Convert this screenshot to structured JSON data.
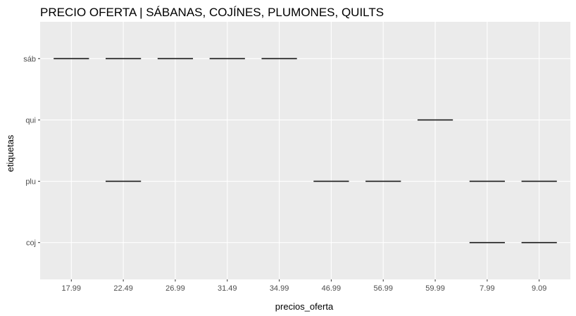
{
  "chart_data": {
    "type": "crossbar",
    "title": "PRECIO OFERTA | SÁBANAS, COJÍNES, PLUMONES, QUILTS",
    "xlabel": "precios_oferta",
    "ylabel": "etiquetas",
    "x_categories": [
      "17.99",
      "22.49",
      "26.99",
      "31.49",
      "34.99",
      "46.99",
      "56.99",
      "59.99",
      "7.99",
      "9.09"
    ],
    "y_categories": [
      "coj",
      "plu",
      "qui",
      "sáb"
    ],
    "segments": [
      {
        "y": "sáb",
        "x_start": "17.99",
        "x_end": "17.99"
      },
      {
        "y": "sáb",
        "x_start": "22.49",
        "x_end": "22.49"
      },
      {
        "y": "sáb",
        "x_start": "26.99",
        "x_end": "26.99"
      },
      {
        "y": "sáb",
        "x_start": "31.49",
        "x_end": "31.49"
      },
      {
        "y": "sáb",
        "x_start": "34.99",
        "x_end": "34.99"
      },
      {
        "y": "qui",
        "x_start": "59.99",
        "x_end": "59.99"
      },
      {
        "y": "plu",
        "x_start": "22.49",
        "x_end": "22.49"
      },
      {
        "y": "plu",
        "x_start": "46.99",
        "x_end": "46.99"
      },
      {
        "y": "plu",
        "x_start": "56.99",
        "x_end": "56.99"
      },
      {
        "y": "plu",
        "x_start": "7.99",
        "x_end": "7.99"
      },
      {
        "y": "plu",
        "x_start": "9.09",
        "x_end": "9.09"
      },
      {
        "y": "coj",
        "x_start": "7.99",
        "x_end": "7.99"
      },
      {
        "y": "coj",
        "x_start": "9.09",
        "x_end": "9.09"
      }
    ],
    "grid": true,
    "colors": {
      "panel_background": "#ebebeb",
      "grid_line": "#ffffff",
      "segment": "#1a1a1a",
      "tick_label": "#4d4d4d"
    }
  }
}
